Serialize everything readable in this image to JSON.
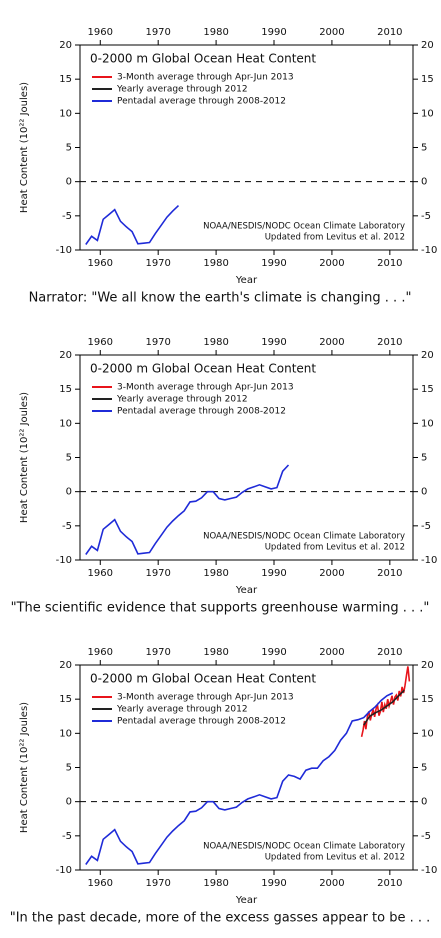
{
  "chart_data": [
    {
      "type": "line",
      "title": "0-2000 m Global Ocean Heat Content",
      "x_label": "Year",
      "y_label": "Heat Content (10²² Joules)",
      "credit": [
        "NOAA/NESDIS/NODC Ocean Climate Laboratory",
        "Updated from Levitus et al. 2012"
      ],
      "caption": "Narrator: \"We all know the earth's climate is changing . . .\"",
      "xlim": [
        1956.5,
        2014
      ],
      "xticks": [
        1960,
        1970,
        1980,
        1990,
        2000,
        2010
      ],
      "ylim": [
        -10,
        20
      ],
      "yticks": [
        -10,
        -5,
        0,
        5,
        10,
        15,
        20
      ],
      "series": [
        {
          "name": "3-Month average through Apr-Jun 2013",
          "color": "#e8141b",
          "x": [],
          "values": []
        },
        {
          "name": "Yearly average through 2012",
          "color": "#222222",
          "x": [],
          "values": []
        },
        {
          "name": "Pentadal average through 2008-2012",
          "color": "#1f2bd8",
          "x": [
            1957.5,
            1958.5,
            1959.5,
            1960.5,
            1961.5,
            1962.5,
            1963.5,
            1964.5,
            1965.5,
            1966.5,
            1967.5,
            1968.5,
            1969.5,
            1970.5,
            1971.5,
            1972.5,
            1973.5
          ],
          "values": [
            -9.2,
            -8.0,
            -8.6,
            -5.5,
            -4.8,
            -4.1,
            -5.8,
            -6.6,
            -7.3,
            -9.1,
            -9.0,
            -8.9,
            -7.6,
            -6.4,
            -5.2,
            -4.3,
            -3.5
          ]
        }
      ]
    },
    {
      "type": "line",
      "title": "0-2000 m Global Ocean Heat Content",
      "x_label": "Year",
      "y_label": "Heat Content (10²² Joules)",
      "credit": [
        "NOAA/NESDIS/NODC Ocean Climate Laboratory",
        "Updated from Levitus et al. 2012"
      ],
      "caption": "\"The scientific evidence that supports greenhouse warming . . .\"",
      "xlim": [
        1956.5,
        2014
      ],
      "xticks": [
        1960,
        1970,
        1980,
        1990,
        2000,
        2010
      ],
      "ylim": [
        -10,
        20
      ],
      "yticks": [
        -10,
        -5,
        0,
        5,
        10,
        15,
        20
      ],
      "series": [
        {
          "name": "3-Month average through Apr-Jun 2013",
          "color": "#e8141b",
          "x": [],
          "values": []
        },
        {
          "name": "Yearly average through 2012",
          "color": "#222222",
          "x": [],
          "values": []
        },
        {
          "name": "Pentadal average through 2008-2012",
          "color": "#1f2bd8",
          "x": [
            1957.5,
            1958.5,
            1959.5,
            1960.5,
            1961.5,
            1962.5,
            1963.5,
            1964.5,
            1965.5,
            1966.5,
            1967.5,
            1968.5,
            1969.5,
            1970.5,
            1971.5,
            1972.5,
            1973.5,
            1974.5,
            1975.5,
            1976.5,
            1977.5,
            1978.5,
            1979.5,
            1980.5,
            1981.5,
            1982.5,
            1983.5,
            1984.5,
            1985.5,
            1986.5,
            1987.5,
            1988.5,
            1989.5,
            1990.5,
            1991.5,
            1992.5
          ],
          "values": [
            -9.2,
            -8.0,
            -8.6,
            -5.5,
            -4.8,
            -4.1,
            -5.8,
            -6.6,
            -7.3,
            -9.1,
            -9.0,
            -8.9,
            -7.6,
            -6.4,
            -5.2,
            -4.3,
            -3.5,
            -2.8,
            -1.5,
            -1.4,
            -0.9,
            0.0,
            0.0,
            -1.0,
            -1.2,
            -1.0,
            -0.8,
            -0.1,
            0.4,
            0.7,
            1.0,
            0.7,
            0.4,
            0.6,
            3.0,
            3.9
          ]
        }
      ]
    },
    {
      "type": "line",
      "title": "0-2000 m Global Ocean Heat Content",
      "x_label": "Year",
      "y_label": "Heat Content (10²² Joules)",
      "credit": [
        "NOAA/NESDIS/NODC Ocean Climate Laboratory",
        "Updated from Levitus et al. 2012"
      ],
      "caption": "\"In the past decade, more of the excess gasses appear to be . . .",
      "xlim": [
        1956.5,
        2014
      ],
      "xticks": [
        1960,
        1970,
        1980,
        1990,
        2000,
        2010
      ],
      "ylim": [
        -10,
        20
      ],
      "yticks": [
        -10,
        -5,
        0,
        5,
        10,
        15,
        20
      ],
      "series": [
        {
          "name": "3-Month average through Apr-Jun 2013",
          "color": "#e8141b",
          "x": [
            2005.125,
            2005.375,
            2005.625,
            2005.875,
            2006.125,
            2006.375,
            2006.625,
            2006.875,
            2007.125,
            2007.375,
            2007.625,
            2007.875,
            2008.125,
            2008.375,
            2008.625,
            2008.875,
            2009.125,
            2009.375,
            2009.625,
            2009.875,
            2010.125,
            2010.375,
            2010.625,
            2010.875,
            2011.125,
            2011.375,
            2011.625,
            2011.875,
            2012.125,
            2012.375,
            2012.625,
            2012.875,
            2013.125,
            2013.375
          ],
          "values": [
            9.5,
            10.5,
            11.8,
            10.6,
            12.5,
            13.2,
            11.9,
            12.8,
            13.5,
            12.4,
            13.6,
            14.1,
            12.6,
            13.2,
            14.6,
            13.1,
            14.2,
            13.6,
            15.0,
            14.0,
            14.7,
            15.5,
            14.2,
            15.3,
            15.6,
            14.8,
            16.2,
            15.4,
            16.8,
            15.9,
            17.0,
            18.5,
            19.8,
            17.6
          ]
        },
        {
          "name": "Yearly average through 2012",
          "color": "#222222",
          "x": [
            2005.5,
            2006.5,
            2007.5,
            2008.5,
            2009.5,
            2010.5,
            2011.5,
            2012.5
          ],
          "values": [
            11.2,
            12.5,
            13.0,
            13.4,
            14.0,
            14.6,
            15.5,
            16.3
          ]
        },
        {
          "name": "Pentadal average through 2008-2012",
          "color": "#1f2bd8",
          "x": [
            1957.5,
            1958.5,
            1959.5,
            1960.5,
            1961.5,
            1962.5,
            1963.5,
            1964.5,
            1965.5,
            1966.5,
            1967.5,
            1968.5,
            1969.5,
            1970.5,
            1971.5,
            1972.5,
            1973.5,
            1974.5,
            1975.5,
            1976.5,
            1977.5,
            1978.5,
            1979.5,
            1980.5,
            1981.5,
            1982.5,
            1983.5,
            1984.5,
            1985.5,
            1986.5,
            1987.5,
            1988.5,
            1989.5,
            1990.5,
            1991.5,
            1992.5,
            1993.5,
            1994.5,
            1995.5,
            1996.5,
            1997.5,
            1998.5,
            1999.5,
            2000.5,
            2001.5,
            2002.5,
            2003.5,
            2004.5,
            2005.5,
            2006.5,
            2007.5,
            2008.5,
            2009.5,
            2010.5
          ],
          "values": [
            -9.2,
            -8.0,
            -8.6,
            -5.5,
            -4.8,
            -4.1,
            -5.8,
            -6.6,
            -7.3,
            -9.1,
            -9.0,
            -8.9,
            -7.6,
            -6.4,
            -5.2,
            -4.3,
            -3.5,
            -2.8,
            -1.5,
            -1.4,
            -0.9,
            0.0,
            0.0,
            -1.0,
            -1.2,
            -1.0,
            -0.8,
            -0.1,
            0.4,
            0.7,
            1.0,
            0.7,
            0.4,
            0.6,
            3.0,
            3.9,
            3.7,
            3.3,
            4.6,
            4.9,
            4.9,
            6.0,
            6.6,
            7.5,
            9.0,
            10.0,
            11.8,
            12.0,
            12.3,
            13.2,
            13.9,
            14.8,
            15.5,
            15.9
          ]
        }
      ]
    }
  ]
}
